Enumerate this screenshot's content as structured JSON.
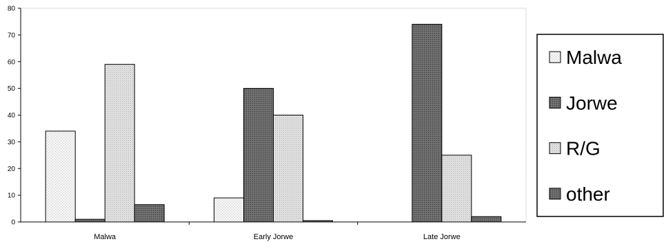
{
  "chart_data": {
    "type": "bar",
    "title": "",
    "xlabel": "",
    "ylabel": "",
    "ylim": [
      0,
      80
    ],
    "yticks": [
      0,
      10,
      20,
      30,
      40,
      50,
      60,
      70,
      80
    ],
    "grid": false,
    "legend_position": "right",
    "categories": [
      "Malwa",
      "Early Jorwe",
      "Late Jorwe"
    ],
    "series": [
      {
        "name": "Malwa",
        "values": [
          34,
          9,
          0
        ],
        "color": "#f2f2f2",
        "pattern": "light"
      },
      {
        "name": "Jorwe",
        "values": [
          1,
          50,
          74
        ],
        "color": "#6e6e6e",
        "pattern": "dark"
      },
      {
        "name": "R/G",
        "values": [
          59,
          40,
          25
        ],
        "color": "#e2e2e2",
        "pattern": "stipple"
      },
      {
        "name": "other",
        "values": [
          6.5,
          0.5,
          2
        ],
        "color": "#555555",
        "pattern": "dark"
      }
    ]
  }
}
